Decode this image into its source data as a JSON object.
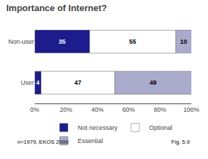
{
  "chart_data": {
    "type": "bar",
    "title": "Importance of Internet?",
    "orientation": "horizontal",
    "stacked": true,
    "data_labels": true,
    "categories": [
      "User",
      "Non-user"
    ],
    "series": [
      {
        "name": "Not necessary",
        "color": "#1C1C8C",
        "values": [
          4,
          35
        ]
      },
      {
        "name": "Optional",
        "color": "#FFFFFF",
        "values": [
          47,
          55
        ]
      },
      {
        "name": "Essential",
        "color": "#AAAACC",
        "values": [
          49,
          10
        ]
      }
    ],
    "xlim": [
      0,
      100
    ],
    "xticks": [
      {
        "value": 0,
        "label": "0%"
      },
      {
        "value": 20,
        "label": "20%"
      },
      {
        "value": 40,
        "label": "40%"
      },
      {
        "value": 60,
        "label": "60%"
      },
      {
        "value": 80,
        "label": "80%"
      },
      {
        "value": 100,
        "label": "100%"
      }
    ],
    "grid": false,
    "legend": "bottom",
    "annotations": [
      {
        "text": "n=1979, EKOS 2000"
      },
      {
        "text": "Fig. 5.9"
      }
    ]
  }
}
